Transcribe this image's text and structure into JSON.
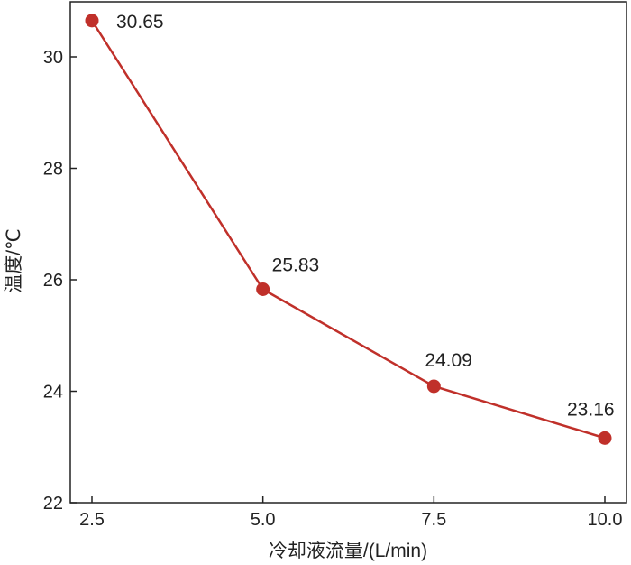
{
  "chart_data": {
    "type": "line",
    "title": "",
    "xlabel": "冷却液流量/(L/min)",
    "ylabel": "温度/℃",
    "x": [
      2.5,
      5.0,
      7.5,
      10.0
    ],
    "x_tick_labels": [
      "2.5",
      "5.0",
      "7.5",
      "10.0"
    ],
    "y_ticks": [
      22,
      24,
      26,
      28,
      30
    ],
    "y_tick_labels": [
      "22",
      "24",
      "26",
      "28",
      "30"
    ],
    "xlim": [
      2.5,
      10.0
    ],
    "ylim": [
      22,
      31
    ],
    "grid": false,
    "series": [
      {
        "values": [
          30.65,
          25.83,
          24.09,
          23.16
        ],
        "data_labels": [
          "30.65",
          "25.83",
          "24.09",
          "23.16"
        ],
        "color": "#c0302a"
      }
    ]
  }
}
